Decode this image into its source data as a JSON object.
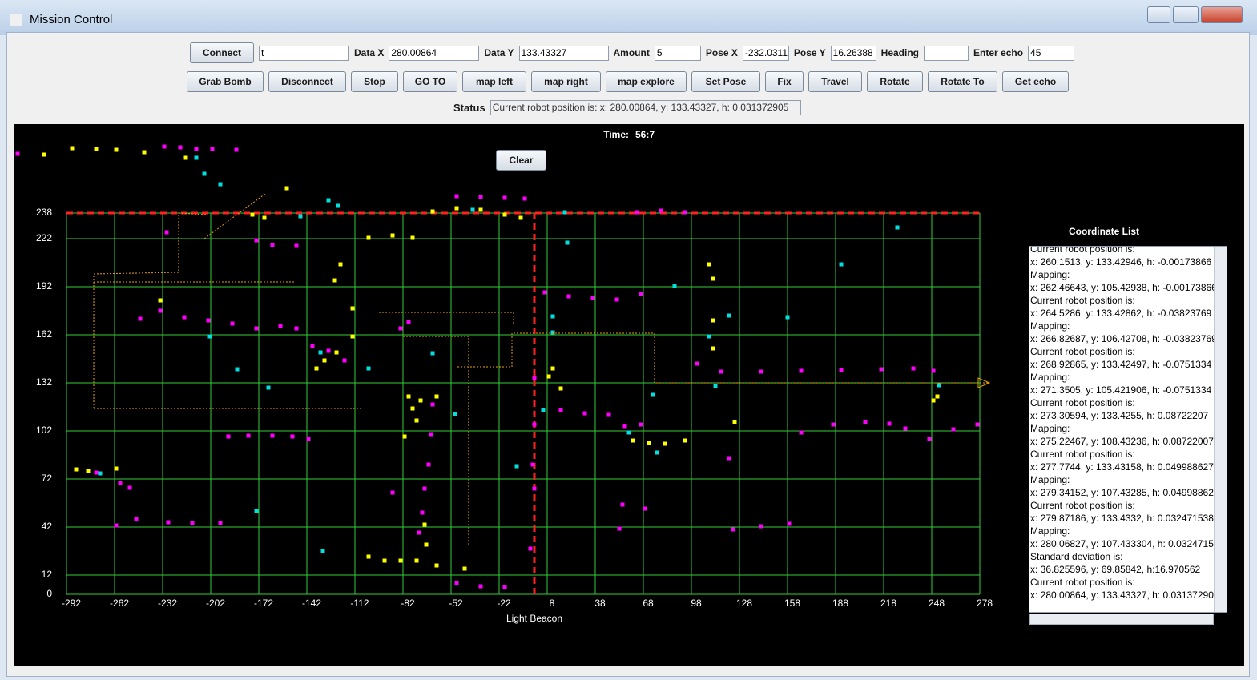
{
  "window": {
    "title": "Mission Control"
  },
  "toolbar": {
    "connect": "Connect",
    "command_field": "t",
    "fields": [
      {
        "label": "Data X",
        "value": "280.00864"
      },
      {
        "label": "Data Y",
        "value": "133.43327"
      },
      {
        "label": "Amount",
        "value": "5"
      },
      {
        "label": "Pose X",
        "value": "-232.0311"
      },
      {
        "label": "Pose Y",
        "value": "16.26388"
      },
      {
        "label": "Heading"
      },
      {
        "label": "Enter echo",
        "value": "45"
      }
    ],
    "buttons": [
      "Grab Bomb",
      "Disconnect",
      "Stop",
      "GO TO",
      "map left",
      "map right",
      "map explore",
      "Set Pose",
      "Fix",
      "Travel",
      "Rotate",
      "Rotate To",
      "Get echo"
    ]
  },
  "status": {
    "label": "Status",
    "text": "Current robot position is: x: 280.00864, y: 133.43327, h: 0.031372905"
  },
  "time_label": "Time:",
  "time": "56:7",
  "clear_button": "Clear",
  "coordinate_list": {
    "title": "Coordinate List",
    "lines": [
      "Current robot position is:",
      "x: 260.1513, y: 133.42946, h: -0.00173866",
      "Mapping:",
      "x: 262.46643, y: 105.42938, h: -0.00173866",
      "Current robot position is:",
      "x: 264.5286, y: 133.42862, h: -0.03823769",
      "Mapping:",
      "x: 266.82687, y: 106.42708, h: -0.03823769",
      "Current robot position is:",
      "x: 268.92865, y: 133.42497, h: -0.0751334",
      "Mapping:",
      "x: 271.3505, y: 105.421906, h: -0.0751334",
      "Current robot position is:",
      "x: 273.30594, y: 133.4255, h: 0.08722207",
      "Mapping:",
      "x: 275.22467, y: 108.43236, h: 0.08722007",
      "Current robot position is:",
      "x: 277.7744, y: 133.43158, h: 0.049988627",
      "Mapping:",
      "x: 279.34152, y: 107.43285, h: 0.04998862",
      "Current robot position is:",
      "x: 279.87186, y: 133.4332, h: 0.032471538",
      "Mapping:",
      "x: 280.06827, y: 107.433304, h: 0.0324715",
      "Standard deviation is:",
      "x: 36.825596, y: 69.85842, h:16.970562",
      "Current robot position is:",
      "x: 280.00864, y: 133.43327, h: 0.03137290"
    ]
  },
  "chart_data": {
    "type": "scatter",
    "x_label": "Light Beacon",
    "xlim": [
      -325,
      287
    ],
    "ylim": [
      -44,
      290
    ],
    "xticks": [
      -292,
      -262,
      -232,
      -202,
      -172,
      -142,
      -112,
      -82,
      -52,
      -22,
      8,
      38,
      68,
      98,
      128,
      158,
      188,
      218,
      248,
      278
    ],
    "yticks": [
      0,
      12,
      42,
      72,
      102,
      132,
      162,
      192,
      222,
      238
    ],
    "grid": true,
    "grid_color": "#33cc33",
    "background": "#000000",
    "crosshair": {
      "x": 0,
      "y": 238,
      "color": "#ff2020"
    },
    "series": [
      {
        "type": "scatter",
        "color": "#ff00ff",
        "x": [
          -322.5,
          -231,
          -221,
          -211,
          -201,
          -186,
          -48.5,
          -33.5,
          -18.5,
          -6,
          64,
          79,
          94,
          -246,
          -233.5,
          -218.5,
          -203.5,
          -188.5,
          -173.5,
          -158.5,
          -148.5,
          -229.5,
          -173.5,
          -163.5,
          -148.5,
          -138.5,
          -128.5,
          -118.5,
          -83.5,
          -78.5,
          -191,
          -178.5,
          -163.5,
          -151,
          -141,
          -273.5,
          -258.5,
          -252.5,
          -261,
          -248.5,
          -228.5,
          -213.5,
          -196,
          -63.5,
          -64.5,
          -66,
          -68.5,
          -70,
          -72,
          -88.5,
          -48.5,
          -33.5,
          -18.5,
          6.5,
          21.5,
          36.5,
          51.5,
          66.5,
          16.5,
          31.5,
          46.5,
          56.5,
          66.5,
          0,
          0,
          -1,
          0,
          -2.5,
          101.5,
          116.5,
          141.5,
          166.5,
          191.5,
          216.5,
          236.5,
          249,
          166.5,
          186.5,
          206.5,
          221.5,
          231.5,
          246.5,
          261.5,
          276.5,
          124,
          141.5,
          159,
          55,
          53,
          69,
          121.5
        ],
        "y": [
          275,
          279.5,
          279,
          278,
          278,
          277.5,
          248.5,
          248,
          247.5,
          247,
          238.5,
          239.5,
          238.5,
          172,
          177,
          173,
          171,
          169,
          166,
          167.5,
          166,
          226,
          221,
          218,
          217.5,
          155,
          152,
          146,
          166,
          170,
          98.5,
          99,
          99,
          98.5,
          97,
          76,
          69.5,
          66.5,
          43,
          47,
          45,
          44.5,
          44.5,
          118.5,
          100,
          81,
          66,
          51,
          38.5,
          63.5,
          7,
          5,
          4.5,
          188.5,
          186,
          185,
          184,
          187.5,
          115,
          113,
          112,
          105,
          106,
          135,
          106,
          81,
          66,
          28.5,
          144,
          139,
          139,
          139.5,
          140,
          140.5,
          141,
          139.5,
          101,
          106,
          107.5,
          106.5,
          103.5,
          97,
          103,
          106,
          40.5,
          42.5,
          44,
          56,
          41,
          53.5,
          85
        ]
      },
      {
        "type": "scatter",
        "color": "#ffff00",
        "x": [
          -306,
          -288.5,
          -273.5,
          -261,
          -243.5,
          -217.5,
          -154.5,
          -176,
          -168.5,
          -63.5,
          -48.5,
          -33.5,
          -18.5,
          -8.5,
          -103.5,
          -88.5,
          -76,
          -121,
          -124.5,
          -113.5,
          -113.5,
          -123.5,
          -131,
          -136,
          -233.5,
          -78.5,
          -76,
          -71,
          -61,
          -73.5,
          -81,
          -68.5,
          -67.5,
          -103.5,
          -93.5,
          -83.5,
          -73.5,
          -61,
          -43.5,
          -286,
          -278.5,
          -261,
          11.5,
          9,
          16.5,
          61.5,
          71.5,
          81.5,
          94,
          109,
          111.5,
          111.5,
          111.5,
          249,
          251.5,
          125
        ],
        "y": [
          274.5,
          278.5,
          278,
          277.5,
          276,
          272.5,
          253.5,
          237,
          235,
          239,
          241,
          240,
          237,
          235,
          222.5,
          224,
          222.5,
          206,
          196,
          178.5,
          161,
          151,
          146,
          141,
          183.5,
          123.5,
          116,
          121,
          123.5,
          108.5,
          98.5,
          43.5,
          31,
          23.5,
          21,
          21,
          21,
          18,
          16,
          78,
          77,
          78.5,
          141,
          136,
          128.5,
          96,
          94.5,
          94,
          96,
          206,
          197,
          171,
          153.5,
          121,
          123.5,
          107.5
        ]
      },
      {
        "type": "scatter",
        "color": "#00e0e0",
        "x": [
          -206,
          -211,
          -196,
          -128.5,
          -122.5,
          -146,
          -38.5,
          19,
          20.5,
          226.5,
          191.5,
          158,
          121.5,
          87.5,
          11.5,
          11.5,
          -202.5,
          -185.5,
          -166,
          -133.5,
          -103.5,
          -63.5,
          -49.5,
          5.5,
          -11,
          -173.5,
          -132,
          -271,
          74,
          76.5,
          59,
          109,
          113,
          252.5
        ],
        "y": [
          262.5,
          272.5,
          256,
          246,
          242.5,
          236,
          240,
          238.5,
          219.5,
          229,
          206,
          173,
          174,
          192.5,
          173.5,
          163.5,
          161,
          140.5,
          129,
          151,
          141,
          150.5,
          112.5,
          115,
          80,
          52,
          27,
          75.5,
          124.5,
          88.5,
          101,
          161,
          130,
          130.5
        ]
      },
      {
        "type": "line",
        "color": "#e8a000",
        "x": [
          -275,
          -275,
          -222,
          -222,
          -205,
          null,
          -275,
          -107,
          null,
          -275,
          -150,
          null,
          -97,
          -13,
          -13,
          null,
          -82,
          -41,
          -41,
          null,
          -206,
          -168,
          null,
          -48,
          -14,
          -14,
          75,
          75,
          284
        ],
        "y": [
          116,
          200,
          201,
          238,
          237,
          null,
          116,
          116,
          null,
          195,
          195,
          null,
          176,
          176,
          168,
          null,
          161,
          161,
          30,
          null,
          222,
          250,
          null,
          142,
          142,
          163,
          163,
          132,
          132
        ]
      }
    ]
  }
}
